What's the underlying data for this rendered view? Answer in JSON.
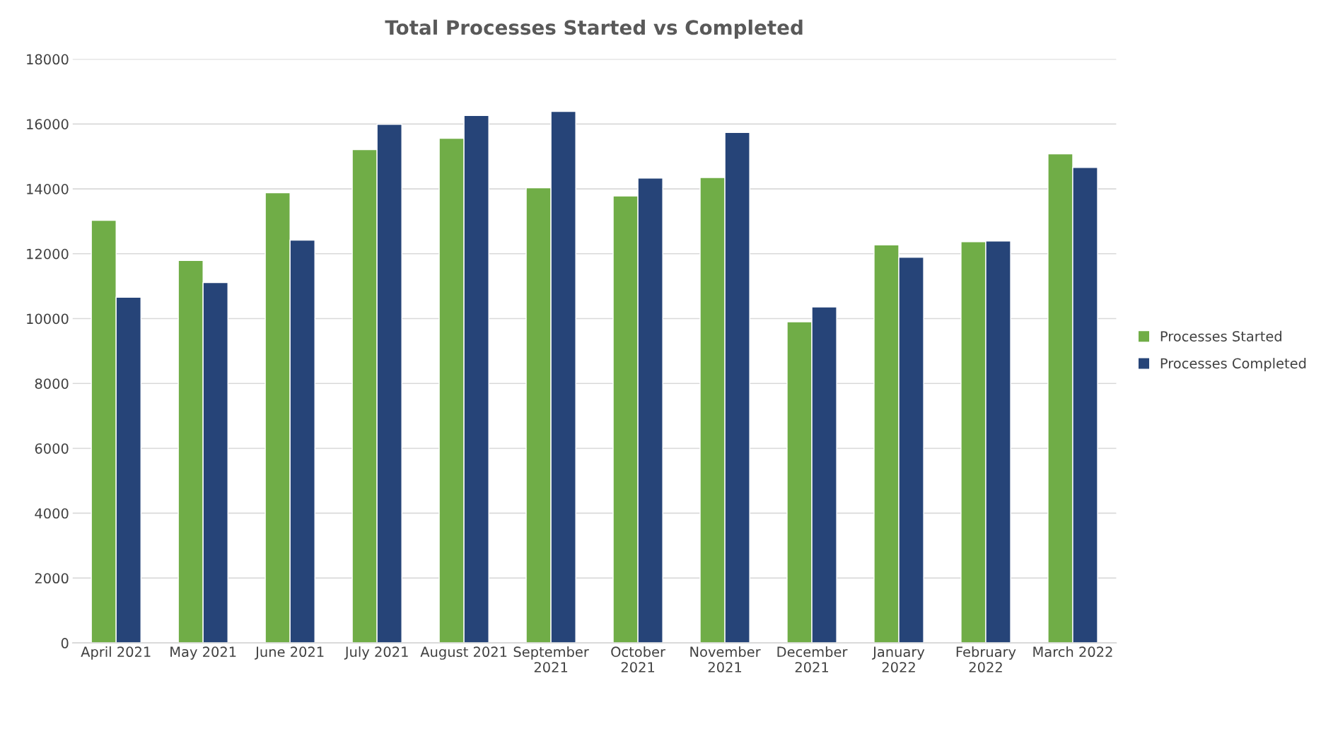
{
  "chart_data": {
    "type": "bar",
    "title": "Total Processes Started vs Completed",
    "categories": [
      "April 2021",
      "May 2021",
      "June 2021",
      "July 2021",
      "August 2021",
      "September 2021",
      "October 2021",
      "November 2021",
      "December 2021",
      "January 2022",
      "February 2022",
      "March 2022"
    ],
    "series": [
      {
        "name": "Processes Started",
        "color": "#70ad47",
        "values": [
          13030,
          11790,
          13880,
          15210,
          15560,
          14030,
          13780,
          14350,
          9900,
          12270,
          12370,
          15080
        ]
      },
      {
        "name": "Processes Completed",
        "color": "#264478",
        "values": [
          10660,
          11110,
          12420,
          15990,
          16260,
          16390,
          14330,
          15740,
          10360,
          11890,
          12390,
          14660
        ]
      }
    ],
    "ylim": [
      0,
      18000
    ],
    "yticks": [
      0,
      2000,
      4000,
      6000,
      8000,
      10000,
      12000,
      14000,
      16000,
      18000
    ],
    "grid": "y",
    "legend": "right"
  }
}
